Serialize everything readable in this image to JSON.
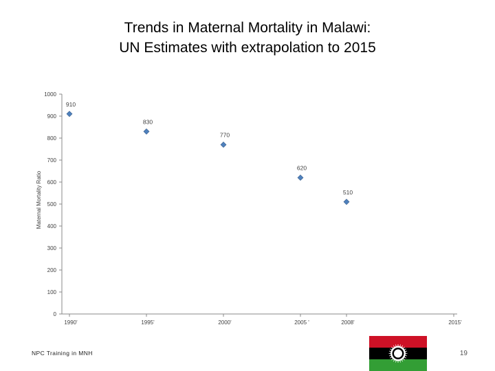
{
  "slide": {
    "title_line1": "Trends in Maternal Mortality in Malawi:",
    "title_line2": "UN Estimates with extrapolation to 2015",
    "footer": "NPC Training in MNH",
    "page_number": "19"
  },
  "flag": {
    "name": "Malawi flag",
    "stripe_colors": [
      "#ce1126",
      "#000000",
      "#339e35"
    ],
    "emblem": "sun-emblem-icon"
  },
  "colors": {
    "marker": "#4f81bd",
    "marker_stroke": "#385d8a",
    "axis": "#888888",
    "text": "#404040"
  },
  "chart_data": {
    "type": "scatter",
    "xlabel": "",
    "ylabel": "Maternal Mortality Ratio",
    "xlim": [
      1990,
      2015
    ],
    "ylim": [
      0,
      1000
    ],
    "y_ticks": [
      0,
      100,
      200,
      300,
      400,
      500,
      600,
      700,
      800,
      900,
      1000
    ],
    "x_ticks": [
      {
        "value": 1990,
        "label": "1990'"
      },
      {
        "value": 1995,
        "label": "1995'"
      },
      {
        "value": 2000,
        "label": "2000'"
      },
      {
        "value": 2005,
        "label": "2005 '"
      },
      {
        "value": 2008,
        "label": "2008'"
      },
      {
        "value": 2015,
        "label": "2015'"
      }
    ],
    "points": [
      {
        "x": 1990,
        "y": 910,
        "label": "910"
      },
      {
        "x": 1995,
        "y": 830,
        "label": "830"
      },
      {
        "x": 2000,
        "y": 770,
        "label": "770"
      },
      {
        "x": 2005,
        "y": 620,
        "label": "620"
      },
      {
        "x": 2008,
        "y": 510,
        "label": "510"
      }
    ],
    "grid": false,
    "legend": "none"
  }
}
